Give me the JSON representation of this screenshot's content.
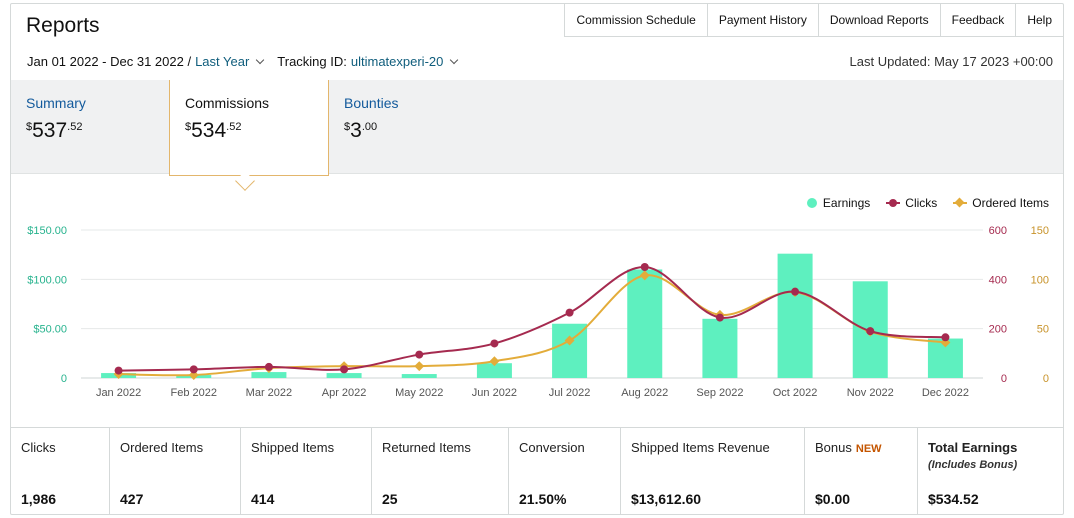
{
  "header": {
    "title": "Reports",
    "nav": [
      "Commission Schedule",
      "Payment History",
      "Download Reports",
      "Feedback",
      "Help"
    ]
  },
  "filters": {
    "date_range": "Jan 01 2022 - Dec 31 2022 /",
    "period": "Last Year",
    "tracking_label": "Tracking ID:",
    "tracking_id": "ultimatexperi-20",
    "last_updated": "Last Updated: May 17 2023 +00:00"
  },
  "tabs": [
    {
      "label": "Summary",
      "currency": "$",
      "whole": "537",
      "cents": ".52"
    },
    {
      "label": "Commissions",
      "currency": "$",
      "whole": "534",
      "cents": ".52"
    },
    {
      "label": "Bounties",
      "currency": "$",
      "whole": "3",
      "cents": ".00"
    }
  ],
  "legend": {
    "earnings": "Earnings",
    "clicks": "Clicks",
    "ordered": "Ordered Items"
  },
  "colors": {
    "earnings": "#5ef0bf",
    "clicks": "#a52a4f",
    "ordered": "#e3ac3a",
    "left_axis": "#27b38e",
    "clicks_axis": "#a52a4f",
    "ordered_axis": "#c8932a",
    "link": "#135a9c",
    "accent": "#e3b66c"
  },
  "chart_data": {
    "type": "bar",
    "categories": [
      "Jan 2022",
      "Feb 2022",
      "Mar 2022",
      "Apr 2022",
      "May 2022",
      "Jun 2022",
      "Jul 2022",
      "Aug 2022",
      "Sep 2022",
      "Oct 2022",
      "Nov 2022",
      "Dec 2022"
    ],
    "series": [
      {
        "name": "Earnings",
        "axis": "left",
        "values": [
          5,
          3,
          6,
          5,
          4,
          15,
          55,
          110,
          60,
          126,
          98,
          40
        ]
      },
      {
        "name": "Clicks",
        "axis": "right1",
        "type": "line",
        "values": [
          30,
          35,
          45,
          35,
          95,
          140,
          265,
          450,
          245,
          350,
          190,
          165
        ]
      },
      {
        "name": "Ordered Items",
        "axis": "right2",
        "type": "line",
        "values": [
          4,
          3,
          10,
          12,
          12,
          17,
          38,
          104,
          64,
          87,
          47,
          36
        ]
      }
    ],
    "left_axis": {
      "ticks": [
        "$150.00",
        "$100.00",
        "$50.00",
        "0"
      ],
      "range": [
        0,
        150
      ]
    },
    "right_axis_clicks": {
      "ticks": [
        "600",
        "400",
        "200",
        "0"
      ],
      "range": [
        0,
        600
      ]
    },
    "right_axis_ordered": {
      "ticks": [
        "150",
        "100",
        "50",
        "0"
      ],
      "range": [
        0,
        150
      ]
    },
    "grid": true,
    "legend_position": "top-right"
  },
  "stats": [
    {
      "label": "Clicks",
      "value": "1,986"
    },
    {
      "label": "Ordered Items",
      "value": "427"
    },
    {
      "label": "Shipped Items",
      "value": "414"
    },
    {
      "label": "Returned Items",
      "value": "25"
    },
    {
      "label": "Conversion",
      "value": "21.50%"
    },
    {
      "label": "Shipped Items Revenue",
      "value": "$13,612.60"
    },
    {
      "label": "Bonus",
      "badge": "NEW",
      "value": "$0.00"
    },
    {
      "label": "Total Earnings",
      "sub": "(Includes Bonus)",
      "value": "$534.52"
    }
  ]
}
